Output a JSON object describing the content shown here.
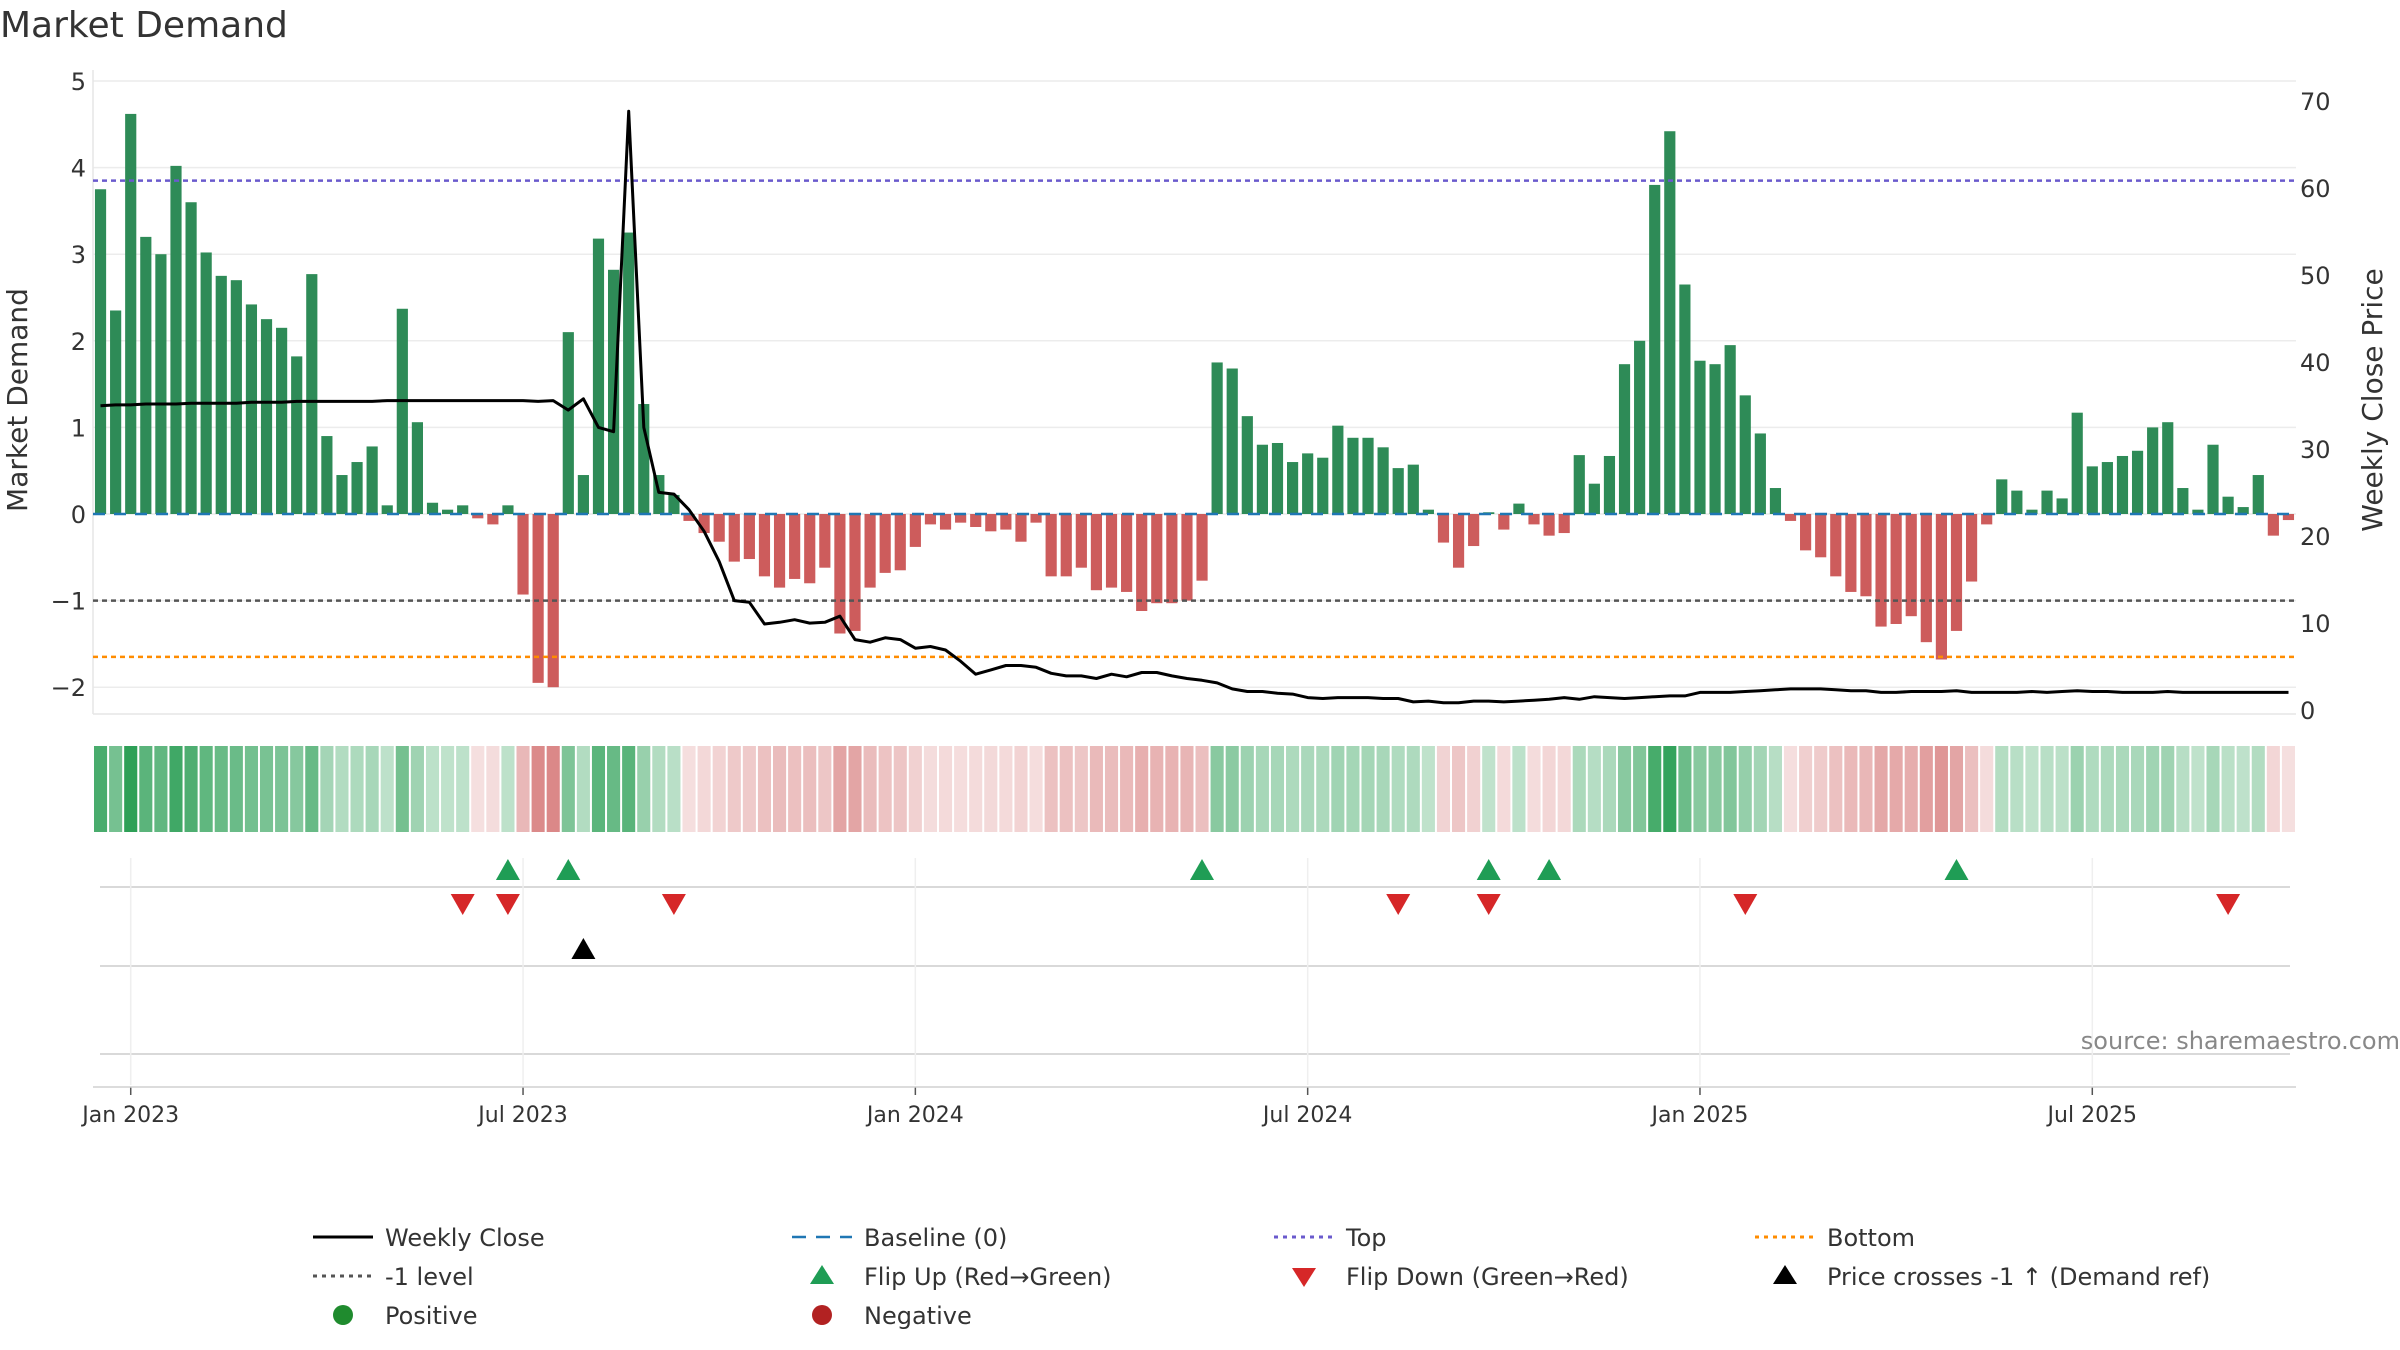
{
  "chart_data": {
    "type": "bar",
    "title": "Market Demand",
    "ylabel": "Market Demand",
    "y2label": "Weekly Close Price",
    "source": "source: sharemaestro.com",
    "ylim": [
      -2.25,
      5.0
    ],
    "y2lim": [
      0,
      73.6
    ],
    "y_ticks": [
      {
        "v": 5,
        "label": "5"
      },
      {
        "v": 4,
        "label": "4"
      },
      {
        "v": 3,
        "label": "3"
      },
      {
        "v": 2,
        "label": "2"
      },
      {
        "v": 1,
        "label": "1"
      },
      {
        "v": 0,
        "label": "0"
      },
      {
        "v": -1,
        "label": "−1"
      },
      {
        "v": -2,
        "label": "−2"
      }
    ],
    "y2_ticks": [
      {
        "v": 70,
        "label": "70"
      },
      {
        "v": 60,
        "label": "60"
      },
      {
        "v": 50,
        "label": "50"
      },
      {
        "v": 40,
        "label": "40"
      },
      {
        "v": 30,
        "label": "30"
      },
      {
        "v": 20,
        "label": "20"
      },
      {
        "v": 10,
        "label": "10"
      },
      {
        "v": 0,
        "label": "0"
      }
    ],
    "x_ticks": [
      {
        "w": 2.5,
        "label": "Jan 2023"
      },
      {
        "w": 28.5,
        "label": "Jul 2023"
      },
      {
        "w": 54.5,
        "label": "Jan 2024"
      },
      {
        "w": 80.5,
        "label": "Jul 2024"
      },
      {
        "w": 106.5,
        "label": "Jan 2025"
      },
      {
        "w": 132.5,
        "label": "Jul 2025"
      }
    ],
    "top_level": 3.85,
    "bottom_level": -1.65,
    "minus_one_level": -1,
    "demand": [
      3.75,
      2.35,
      4.62,
      3.2,
      3.0,
      4.02,
      3.6,
      3.02,
      2.75,
      2.7,
      2.42,
      2.25,
      2.15,
      1.82,
      2.77,
      0.9,
      0.45,
      0.6,
      0.78,
      0.1,
      2.37,
      1.06,
      0.13,
      0.05,
      0.1,
      -0.05,
      -0.12,
      0.1,
      -0.93,
      -1.95,
      -2.0,
      2.1,
      0.45,
      3.18,
      2.82,
      3.25,
      1.27,
      0.45,
      0.22,
      -0.08,
      -0.22,
      -0.32,
      -0.55,
      -0.52,
      -0.72,
      -0.85,
      -0.75,
      -0.8,
      -0.62,
      -1.38,
      -1.35,
      -0.85,
      -0.68,
      -0.65,
      -0.38,
      -0.12,
      -0.18,
      -0.1,
      -0.15,
      -0.2,
      -0.18,
      -0.32,
      -0.1,
      -0.72,
      -0.72,
      -0.62,
      -0.88,
      -0.85,
      -0.9,
      -1.12,
      -1.03,
      -1.03,
      -1.0,
      -0.77,
      1.75,
      1.68,
      1.13,
      0.8,
      0.82,
      0.6,
      0.7,
      0.65,
      1.02,
      0.88,
      0.88,
      0.77,
      0.53,
      0.57,
      0.05,
      -0.33,
      -0.62,
      -0.37,
      0.02,
      -0.18,
      0.12,
      -0.12,
      -0.25,
      -0.22,
      0.68,
      0.35,
      0.67,
      1.73,
      2.0,
      3.8,
      4.42,
      2.65,
      1.77,
      1.73,
      1.95,
      1.37,
      0.93,
      0.3,
      -0.08,
      -0.42,
      -0.5,
      -0.72,
      -0.9,
      -0.95,
      -1.3,
      -1.27,
      -1.18,
      -1.48,
      -1.68,
      -1.35,
      -0.78,
      -0.12,
      0.4,
      0.27,
      0.05,
      0.27,
      0.18,
      1.17,
      0.55,
      0.6,
      0.67,
      0.73,
      1.0,
      1.06,
      0.3,
      0.05,
      0.8,
      0.2,
      0.08,
      0.45,
      -0.25,
      -0.07
    ],
    "price": [
      1.25,
      1.26,
      1.26,
      1.27,
      1.27,
      1.27,
      1.28,
      1.28,
      1.28,
      1.28,
      1.29,
      1.29,
      1.29,
      1.3,
      1.3,
      1.3,
      1.3,
      1.3,
      1.3,
      1.31,
      1.31,
      1.31,
      1.31,
      1.31,
      1.31,
      1.31,
      1.31,
      1.31,
      1.31,
      1.3,
      1.31,
      1.2,
      1.33,
      1.0,
      0.95,
      4.65,
      1.0,
      0.25,
      0.23,
      0.05,
      -0.2,
      -0.55,
      -1.0,
      -1.02,
      -1.27,
      -1.25,
      -1.22,
      -1.26,
      -1.25,
      -1.18,
      -1.45,
      -1.48,
      -1.43,
      -1.45,
      -1.55,
      -1.53,
      -1.57,
      -1.7,
      -1.85,
      -1.8,
      -1.75,
      -1.75,
      -1.77,
      -1.84,
      -1.87,
      -1.87,
      -1.9,
      -1.85,
      -1.88,
      -1.83,
      -1.83,
      -1.87,
      -1.9,
      -1.92,
      -1.95,
      -2.02,
      -2.05,
      -2.05,
      -2.07,
      -2.08,
      -2.12,
      -2.13,
      -2.12,
      -2.12,
      -2.12,
      -2.13,
      -2.13,
      -2.17,
      -2.16,
      -2.18,
      -2.18,
      -2.16,
      -2.16,
      -2.17,
      -2.16,
      -2.15,
      -2.14,
      -2.12,
      -2.14,
      -2.11,
      -2.12,
      -2.13,
      -2.12,
      -2.11,
      -2.1,
      -2.1,
      -2.06,
      -2.06,
      -2.06,
      -2.05,
      -2.04,
      -2.03,
      -2.02,
      -2.02,
      -2.02,
      -2.03,
      -2.04,
      -2.04,
      -2.06,
      -2.06,
      -2.05,
      -2.05,
      -2.05,
      -2.04,
      -2.06,
      -2.06,
      -2.06,
      -2.06,
      -2.05,
      -2.06,
      -2.05,
      -2.04,
      -2.05,
      -2.05,
      -2.06,
      -2.06,
      -2.06,
      -2.05,
      -2.06,
      -2.06,
      -2.06,
      -2.06,
      -2.06,
      -2.06,
      -2.06,
      -2.06
    ],
    "flip_up": [
      27.5,
      31.5,
      73.5,
      92.5,
      96.5,
      123.5
    ],
    "flip_down": [
      24.5,
      27.5,
      38.5,
      86.5,
      92.5,
      109.5,
      141.5
    ],
    "price_cross": [
      32.5
    ],
    "legend_position": "bottom",
    "colors": {
      "positive_bar": "#2e8b57",
      "negative_bar": "#cd5c5c",
      "price_line": "#000000",
      "baseline": "#1f77b4",
      "top": "#6a5acd",
      "bottom": "#ff8c00",
      "minus_one": "#555555",
      "flip_up": "#1f9d55",
      "flip_down": "#d62728",
      "price_cross": "#000000",
      "positive_dot": "#1f8b2e",
      "negative_dot": "#b22222"
    },
    "legend": [
      {
        "key": "weekly_close",
        "label": "Weekly Close",
        "kind": "solid-line",
        "color": "#000000"
      },
      {
        "key": "baseline",
        "label": "Baseline (0)",
        "kind": "dash-line",
        "color": "#1f77b4"
      },
      {
        "key": "top",
        "label": "Top",
        "kind": "dot-line",
        "color": "#6a5acd"
      },
      {
        "key": "bottom",
        "label": "Bottom",
        "kind": "dot-line",
        "color": "#ff8c00"
      },
      {
        "key": "minus_one",
        "label": "-1 level",
        "kind": "dot-line",
        "color": "#555555"
      },
      {
        "key": "flip_up",
        "label": "Flip Up (Red→Green)",
        "kind": "tri-up",
        "color": "#1f9d55"
      },
      {
        "key": "flip_down",
        "label": "Flip Down (Green→Red)",
        "kind": "tri-down",
        "color": "#d62728"
      },
      {
        "key": "price_cross",
        "label": "Price crosses -1 ↑ (Demand ref)",
        "kind": "tri-up",
        "color": "#000000"
      },
      {
        "key": "positive",
        "label": "Positive",
        "kind": "dot",
        "color": "#1f8b2e"
      },
      {
        "key": "negative",
        "label": "Negative",
        "kind": "dot",
        "color": "#b22222"
      }
    ]
  }
}
